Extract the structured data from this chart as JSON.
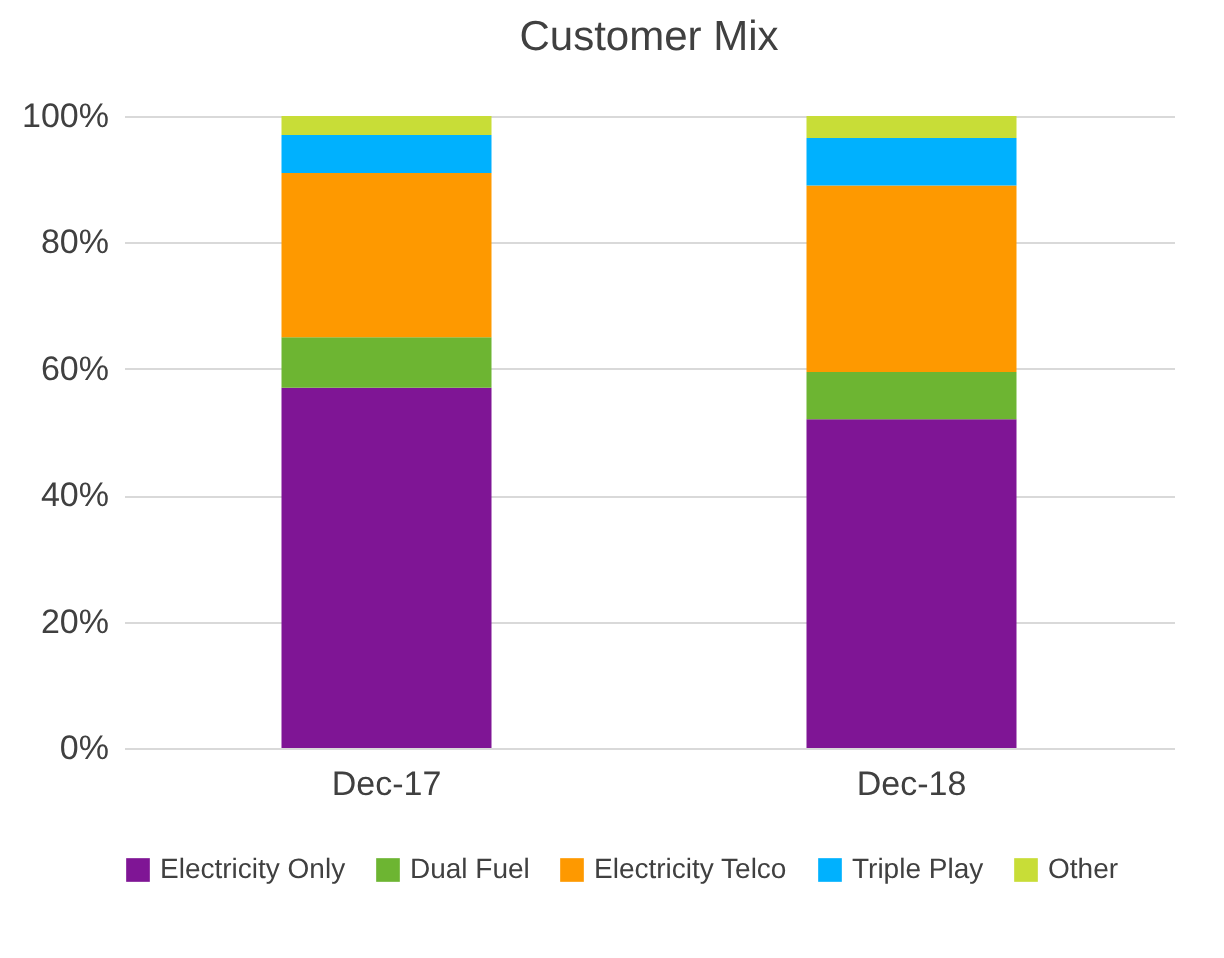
{
  "chart_data": {
    "type": "bar",
    "title": "Customer Mix",
    "stacked": true,
    "categories": [
      "Dec-17",
      "Dec-18"
    ],
    "series": [
      {
        "name": "Electricity Only",
        "color": "#7f1595",
        "values": [
          57,
          52
        ]
      },
      {
        "name": "Dual Fuel",
        "color": "#6db532",
        "values": [
          8,
          7.5
        ]
      },
      {
        "name": "Electricity Telco",
        "color": "#fe9900",
        "values": [
          26,
          29.5
        ]
      },
      {
        "name": "Triple Play",
        "color": "#00b1fe",
        "values": [
          6,
          7.5
        ]
      },
      {
        "name": "Other",
        "color": "#c8dd37",
        "values": [
          3,
          3.5
        ]
      }
    ],
    "ylim": [
      0,
      100
    ],
    "yticks": [
      {
        "value": 0,
        "label": "0%"
      },
      {
        "value": 20,
        "label": "20%"
      },
      {
        "value": 40,
        "label": "40%"
      },
      {
        "value": 60,
        "label": "60%"
      },
      {
        "value": 80,
        "label": "80%"
      },
      {
        "value": 100,
        "label": "100%"
      }
    ],
    "grid": "y",
    "legend": "bottom"
  }
}
